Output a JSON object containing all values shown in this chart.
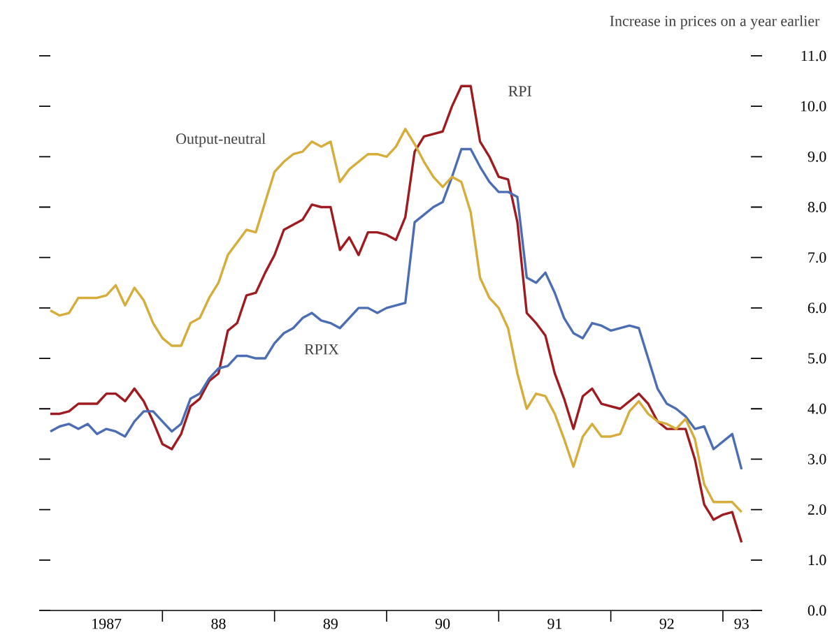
{
  "chart_data": {
    "type": "line",
    "ylabel": "Increase in prices on a year earlier",
    "x": [
      "1987-01",
      "1987-02",
      "1987-03",
      "1987-04",
      "1987-05",
      "1987-06",
      "1987-07",
      "1987-08",
      "1987-09",
      "1987-10",
      "1987-11",
      "1987-12",
      "1988-01",
      "1988-02",
      "1988-03",
      "1988-04",
      "1988-05",
      "1988-06",
      "1988-07",
      "1988-08",
      "1988-09",
      "1988-10",
      "1988-11",
      "1988-12",
      "1989-01",
      "1989-02",
      "1989-03",
      "1989-04",
      "1989-05",
      "1989-06",
      "1989-07",
      "1989-08",
      "1989-09",
      "1989-10",
      "1989-11",
      "1989-12",
      "1990-01",
      "1990-02",
      "1990-03",
      "1990-04",
      "1990-05",
      "1990-06",
      "1990-07",
      "1990-08",
      "1990-09",
      "1990-10",
      "1990-11",
      "1990-12",
      "1991-01",
      "1991-02",
      "1991-03",
      "1991-04",
      "1991-05",
      "1991-06",
      "1991-07",
      "1991-08",
      "1991-09",
      "1991-10",
      "1991-11",
      "1991-12",
      "1992-01",
      "1992-02",
      "1992-03",
      "1992-04",
      "1992-05",
      "1992-06",
      "1992-07",
      "1992-08",
      "1992-09",
      "1992-10",
      "1992-11",
      "1992-12",
      "1993-01",
      "1993-02",
      "1993-03"
    ],
    "series": [
      {
        "name": "RPI",
        "color": "#9e1b1f",
        "values": [
          3.9,
          3.9,
          3.95,
          4.1,
          4.1,
          4.1,
          4.3,
          4.3,
          4.15,
          4.4,
          4.15,
          3.75,
          3.3,
          3.2,
          3.5,
          4.05,
          4.2,
          4.55,
          4.7,
          5.55,
          5.7,
          6.25,
          6.3,
          6.7,
          7.05,
          7.55,
          7.65,
          7.75,
          8.05,
          8.0,
          8.0,
          7.15,
          7.4,
          7.05,
          7.5,
          7.5,
          7.45,
          7.35,
          7.8,
          9.1,
          9.4,
          9.45,
          9.5,
          10.0,
          10.4,
          10.4,
          9.3,
          9.0,
          8.6,
          8.55,
          7.7,
          5.9,
          5.7,
          5.45,
          4.7,
          4.2,
          3.6,
          4.25,
          4.4,
          4.1,
          4.05,
          4.0,
          4.15,
          4.3,
          4.1,
          3.75,
          3.6,
          3.6,
          3.6,
          3.0,
          2.1,
          1.8,
          1.9,
          1.95,
          1.35
        ]
      },
      {
        "name": "RPIX",
        "color": "#4a6db3",
        "values": [
          3.55,
          3.65,
          3.7,
          3.6,
          3.7,
          3.5,
          3.6,
          3.55,
          3.45,
          3.75,
          3.95,
          3.95,
          3.75,
          3.55,
          3.7,
          4.2,
          4.3,
          4.6,
          4.8,
          4.85,
          5.05,
          5.05,
          5.0,
          5.0,
          5.3,
          5.5,
          5.6,
          5.8,
          5.9,
          5.75,
          5.7,
          5.6,
          5.8,
          6.0,
          6.0,
          5.9,
          6.0,
          6.05,
          6.1,
          7.7,
          7.85,
          8.0,
          8.1,
          8.6,
          9.15,
          9.15,
          8.8,
          8.5,
          8.3,
          8.3,
          8.2,
          6.6,
          6.5,
          6.7,
          6.3,
          5.8,
          5.5,
          5.4,
          5.7,
          5.65,
          5.55,
          5.6,
          5.65,
          5.6,
          5.0,
          4.4,
          4.1,
          4.0,
          3.85,
          3.6,
          3.65,
          3.2,
          3.35,
          3.5,
          2.8
        ]
      },
      {
        "name": "Output-neutral",
        "color": "#d6ac3a",
        "values": [
          5.95,
          5.85,
          5.9,
          6.2,
          6.2,
          6.2,
          6.25,
          6.45,
          6.05,
          6.4,
          6.15,
          5.7,
          5.4,
          5.25,
          5.25,
          5.7,
          5.8,
          6.2,
          6.5,
          7.05,
          7.3,
          7.55,
          7.5,
          8.1,
          8.7,
          8.9,
          9.05,
          9.1,
          9.3,
          9.2,
          9.3,
          8.5,
          8.75,
          8.9,
          9.05,
          9.05,
          9.0,
          9.2,
          9.55,
          9.25,
          8.9,
          8.6,
          8.4,
          8.6,
          8.5,
          7.9,
          6.6,
          6.2,
          6.0,
          5.6,
          4.7,
          4.0,
          4.3,
          4.25,
          3.9,
          3.4,
          2.85,
          3.45,
          3.7,
          3.45,
          3.45,
          3.5,
          3.95,
          4.15,
          3.9,
          3.75,
          3.7,
          3.6,
          3.8,
          3.4,
          2.5,
          2.15,
          2.15,
          2.15,
          1.95
        ]
      }
    ],
    "xlim": [
      "1987-01",
      "1993-04"
    ],
    "xticks": [
      {
        "value": "1987-07",
        "label": "1987"
      },
      {
        "value": "1988-01",
        "label": null
      },
      {
        "value": "1988-07",
        "label": "88"
      },
      {
        "value": "1989-01",
        "label": null
      },
      {
        "value": "1989-07",
        "label": "89"
      },
      {
        "value": "1990-01",
        "label": null
      },
      {
        "value": "1990-07",
        "label": "90"
      },
      {
        "value": "1991-01",
        "label": null
      },
      {
        "value": "1991-07",
        "label": "91"
      },
      {
        "value": "1992-01",
        "label": null
      },
      {
        "value": "1992-07",
        "label": "92"
      },
      {
        "value": "1993-01",
        "label": null
      },
      {
        "value": "1993-03",
        "label": "93"
      }
    ],
    "ylim": [
      0,
      11
    ],
    "yticks": [
      {
        "value": 0,
        "label": "0.0"
      },
      {
        "value": 1,
        "label": "1.0"
      },
      {
        "value": 2,
        "label": "2.0"
      },
      {
        "value": 3,
        "label": "3.0"
      },
      {
        "value": 4,
        "label": "4.0"
      },
      {
        "value": 5,
        "label": "5.0"
      },
      {
        "value": 6,
        "label": "6.0"
      },
      {
        "value": 7,
        "label": "7.0"
      },
      {
        "value": 8,
        "label": "8.0"
      },
      {
        "value": 9,
        "label": "9.0"
      },
      {
        "value": 10,
        "label": "10.0"
      },
      {
        "value": 11,
        "label": "11.0"
      }
    ]
  }
}
